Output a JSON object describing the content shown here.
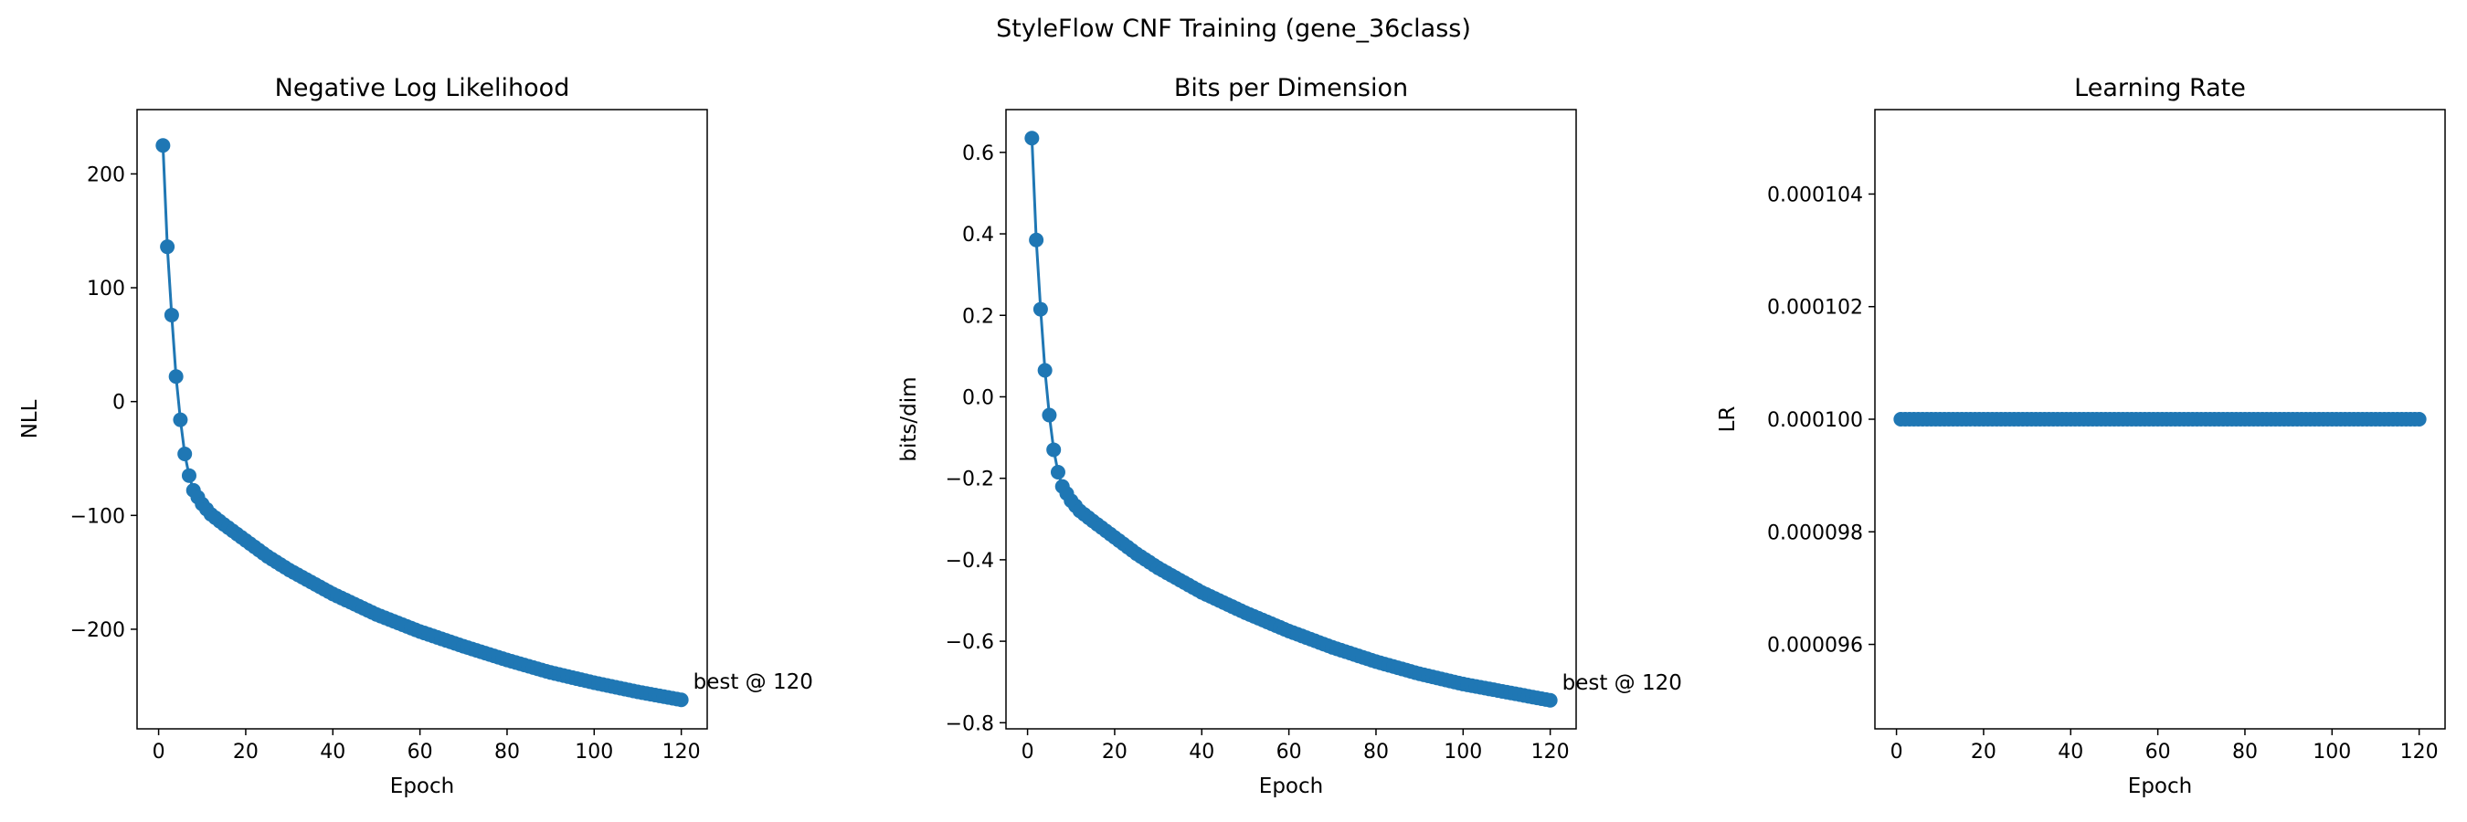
{
  "figure": {
    "suptitle": "StyleFlow CNF Training (gene_36class)",
    "series_color": "#1f77b4"
  },
  "chart_data": [
    {
      "type": "line",
      "markers": true,
      "title": "Negative Log Likelihood",
      "xlabel": "Epoch",
      "ylabel": "NLL",
      "xlim": [
        -4.95,
        125.95
      ],
      "ylim": [
        -287.5,
        256.5
      ],
      "xticks": [
        0,
        20,
        40,
        60,
        80,
        100,
        120
      ],
      "yticks": [
        -200,
        -100,
        0,
        100,
        200
      ],
      "ytick_labels": [
        "−200",
        "−100",
        "0",
        "100",
        "200"
      ],
      "series": [
        {
          "x": [
            1,
            2,
            3,
            4,
            5,
            6,
            7,
            8,
            10,
            12,
            15,
            20,
            25,
            30,
            40,
            50,
            60,
            70,
            80,
            90,
            100,
            110,
            120
          ],
          "y": [
            225,
            136,
            76,
            22,
            -16,
            -46,
            -65,
            -78,
            -90,
            -99,
            -108,
            -122,
            -136,
            -148,
            -169,
            -187,
            -202,
            -215,
            -227,
            -238,
            -247,
            -255,
            -262
          ]
        }
      ],
      "annotation": {
        "text": "best @ 120",
        "x": 120,
        "y": -262
      }
    },
    {
      "type": "line",
      "markers": true,
      "title": "Bits per Dimension",
      "xlabel": "Epoch",
      "ylabel": "bits/dim",
      "xlim": [
        -4.95,
        125.95
      ],
      "ylim": [
        -0.815,
        0.705
      ],
      "xticks": [
        0,
        20,
        40,
        60,
        80,
        100,
        120
      ],
      "yticks": [
        -0.8,
        -0.6,
        -0.4,
        -0.2,
        0.0,
        0.2,
        0.4,
        0.6
      ],
      "ytick_labels": [
        "−0.8",
        "−0.6",
        "−0.4",
        "−0.2",
        "0.0",
        "0.2",
        "0.4",
        "0.6"
      ],
      "series": [
        {
          "x": [
            1,
            2,
            3,
            4,
            5,
            6,
            7,
            8,
            10,
            12,
            15,
            20,
            25,
            30,
            40,
            50,
            60,
            70,
            80,
            90,
            100,
            110,
            120
          ],
          "y": [
            0.635,
            0.385,
            0.215,
            0.065,
            -0.045,
            -0.13,
            -0.185,
            -0.22,
            -0.255,
            -0.28,
            -0.305,
            -0.345,
            -0.385,
            -0.42,
            -0.48,
            -0.53,
            -0.575,
            -0.615,
            -0.65,
            -0.68,
            -0.705,
            -0.725,
            -0.745
          ]
        }
      ],
      "annotation": {
        "text": "best @ 120",
        "x": 120,
        "y": -0.745
      }
    },
    {
      "type": "line",
      "markers": true,
      "title": "Learning Rate",
      "xlabel": "Epoch",
      "ylabel": "LR",
      "xlim": [
        -4.95,
        125.95
      ],
      "ylim": [
        9.45e-05,
        0.0001055
      ],
      "xticks": [
        0,
        20,
        40,
        60,
        80,
        100,
        120
      ],
      "yticks": [
        9.6e-05,
        9.8e-05,
        0.0001,
        0.000102,
        0.000104
      ],
      "ytick_labels": [
        "0.000096",
        "0.000098",
        "0.000100",
        "0.000102",
        "0.000104"
      ],
      "series": [
        {
          "x_range": [
            1,
            120
          ],
          "y_constant": 0.0001
        }
      ]
    }
  ]
}
